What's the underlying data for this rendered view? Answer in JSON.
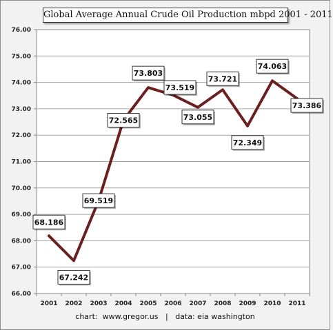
{
  "chart_data": {
    "type": "line",
    "title": "Global Average Annual Crude Oil Production mbpd 2001 - 2011",
    "credit": "chart:  www.gregor.us   |   data: eia washington",
    "categories": [
      "2001",
      "2002",
      "2003",
      "2004",
      "2005",
      "2006",
      "2007",
      "2008",
      "2009",
      "2010",
      "2011"
    ],
    "values": [
      68.186,
      67.242,
      69.519,
      72.565,
      73.803,
      73.519,
      73.055,
      73.721,
      72.349,
      74.063,
      73.386
    ],
    "data_labels": [
      "68.186",
      "67.242",
      "69.519",
      "72.565",
      "73.803",
      "73.519",
      "73.055",
      "73.721",
      "72.349",
      "74.063",
      "73.386"
    ],
    "ylim": [
      66,
      76
    ],
    "y_ticks": [
      "66.00",
      "67.00",
      "68.00",
      "69.00",
      "70.00",
      "71.00",
      "72.00",
      "73.00",
      "74.00",
      "75.00",
      "76.00"
    ],
    "xlabel": "",
    "ylabel": "",
    "grid": true,
    "line_color": "#6b2020",
    "plot_background": "#ffffff"
  }
}
